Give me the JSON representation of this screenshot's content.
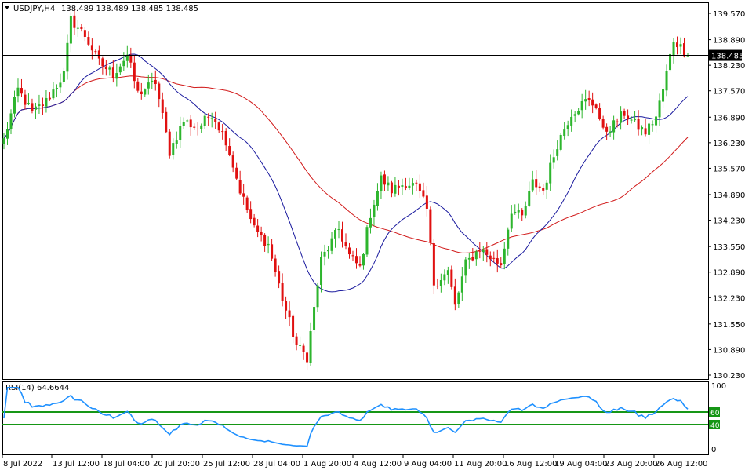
{
  "colors": {
    "background": "#ffffff",
    "frame": "#000000",
    "bull": "#2db52d",
    "bear": "#e01010",
    "ma_fast": "#1a1a9e",
    "ma_slow": "#d11a1a",
    "rsi": "#1e90ff",
    "rsi_levels": "#169616",
    "price_line": "#000000",
    "price_badge": "#000000",
    "price_badge_text": "#ffffff"
  },
  "chart_data": {
    "type": "candlestick",
    "header": {
      "symbol": "USDJPY,H4",
      "ohlc": "138.489 138.489 138.485 138.485"
    },
    "price_axis": {
      "ylim": [
        130.23,
        139.57
      ],
      "ticks": [
        "139.570",
        "138.890",
        "138.230",
        "137.570",
        "136.890",
        "136.230",
        "135.570",
        "134.890",
        "134.230",
        "133.550",
        "132.890",
        "132.230",
        "131.550",
        "130.890",
        "130.230"
      ],
      "current_price_label": "138.485",
      "current_price": 138.485
    },
    "time_axis": {
      "labels": [
        "8 Jul 2022",
        "13 Jul 12:00",
        "18 Jul 04:00",
        "20 Jul 20:00",
        "25 Jul 12:00",
        "28 Jul 04:00",
        "1 Aug 20:00",
        "4 Aug 12:00",
        "9 Aug 04:00",
        "11 Aug 20:00",
        "16 Aug 12:00",
        "19 Aug 04:00",
        "23 Aug 20:00",
        "26 Aug 12:00"
      ]
    },
    "price_keypoints": [
      {
        "i": 0,
        "p": 136.3
      },
      {
        "i": 4,
        "p": 137.6
      },
      {
        "i": 8,
        "p": 137.0
      },
      {
        "i": 12,
        "p": 137.3
      },
      {
        "i": 17,
        "p": 138.0
      },
      {
        "i": 19,
        "p": 139.4
      },
      {
        "i": 23,
        "p": 139.0
      },
      {
        "i": 27,
        "p": 138.3
      },
      {
        "i": 31,
        "p": 138.0
      },
      {
        "i": 35,
        "p": 138.5
      },
      {
        "i": 38,
        "p": 137.5
      },
      {
        "i": 43,
        "p": 137.8
      },
      {
        "i": 47,
        "p": 136.0
      },
      {
        "i": 51,
        "p": 136.8
      },
      {
        "i": 55,
        "p": 136.6
      },
      {
        "i": 59,
        "p": 137.0
      },
      {
        "i": 63,
        "p": 136.3
      },
      {
        "i": 67,
        "p": 135.0
      },
      {
        "i": 71,
        "p": 134.0
      },
      {
        "i": 75,
        "p": 133.6
      },
      {
        "i": 79,
        "p": 132.2
      },
      {
        "i": 83,
        "p": 131.0
      },
      {
        "i": 86,
        "p": 130.7
      },
      {
        "i": 90,
        "p": 133.2
      },
      {
        "i": 95,
        "p": 134.0
      },
      {
        "i": 98,
        "p": 133.3
      },
      {
        "i": 101,
        "p": 133.0
      },
      {
        "i": 104,
        "p": 134.4
      },
      {
        "i": 107,
        "p": 135.3
      },
      {
        "i": 110,
        "p": 135.0
      },
      {
        "i": 114,
        "p": 135.2
      },
      {
        "i": 117,
        "p": 135.1
      },
      {
        "i": 120,
        "p": 134.5
      },
      {
        "i": 122,
        "p": 132.6
      },
      {
        "i": 126,
        "p": 132.9
      },
      {
        "i": 128,
        "p": 132.0
      },
      {
        "i": 131,
        "p": 133.1
      },
      {
        "i": 135,
        "p": 133.5
      },
      {
        "i": 139,
        "p": 133.2
      },
      {
        "i": 141,
        "p": 133.1
      },
      {
        "i": 144,
        "p": 134.5
      },
      {
        "i": 147,
        "p": 134.3
      },
      {
        "i": 150,
        "p": 135.2
      },
      {
        "i": 153,
        "p": 135.0
      },
      {
        "i": 157,
        "p": 136.2
      },
      {
        "i": 161,
        "p": 137.0
      },
      {
        "i": 165,
        "p": 137.3
      },
      {
        "i": 168,
        "p": 137.2
      },
      {
        "i": 170,
        "p": 136.5
      },
      {
        "i": 173,
        "p": 136.7
      },
      {
        "i": 176,
        "p": 137.0
      },
      {
        "i": 179,
        "p": 136.7
      },
      {
        "i": 182,
        "p": 136.5
      },
      {
        "i": 185,
        "p": 136.9
      },
      {
        "i": 187,
        "p": 137.6
      },
      {
        "i": 190,
        "p": 138.9
      },
      {
        "i": 192,
        "p": 138.7
      },
      {
        "i": 194,
        "p": 138.5
      }
    ],
    "ma_fast": {
      "period": 21
    },
    "ma_slow": {
      "period": 55
    },
    "rsi": {
      "label": "RSI(14) 64.6644",
      "period": 14,
      "value": 64.6644,
      "ylim": [
        0,
        100
      ],
      "scale_labels": [
        "100",
        "0"
      ],
      "levels": [
        60,
        40
      ],
      "level_labels": [
        "60",
        "40"
      ]
    }
  }
}
